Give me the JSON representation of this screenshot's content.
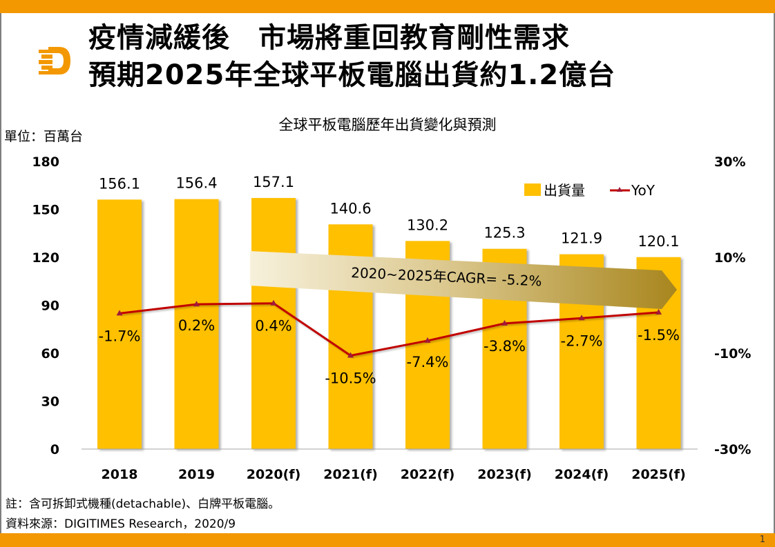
{
  "header": {
    "title_line1": "疫情減緩後　市場將重回教育剛性需求",
    "title_line2": "預期2025年全球平板電腦出貨約1.2億台",
    "logo": "digitimes-logo-icon"
  },
  "unit_label": "單位：百萬台",
  "footer": {
    "note": "註：含可拆卸式機種(detachable)、白牌平板電腦。",
    "source": "資料來源：DIGITIMES Research，2020/9",
    "page_number": "1"
  },
  "colors": {
    "brand": "#f39800",
    "bar": "#ffc000",
    "line": "#c00000",
    "marker": "#a01a3a",
    "cagr_arrow_start": "#f2ead0",
    "cagr_arrow_end": "#a8861e"
  },
  "chart_data": {
    "type": "bar",
    "title": "全球平板電腦歷年出貨變化與預測",
    "xlabel": "",
    "ylabel": "單位：百萬台",
    "categories": [
      "2018",
      "2019",
      "2020(f)",
      "2021(f)",
      "2022(f)",
      "2023(f)",
      "2024(f)",
      "2025(f)"
    ],
    "series": [
      {
        "name": "出貨量",
        "type": "bar",
        "axis": "left",
        "values": [
          156.1,
          156.4,
          157.1,
          140.6,
          130.2,
          125.3,
          121.9,
          120.1
        ],
        "labels": [
          "156.1",
          "156.4",
          "157.1",
          "140.6",
          "130.2",
          "125.3",
          "121.9",
          "120.1"
        ]
      },
      {
        "name": "YoY",
        "type": "line",
        "axis": "right",
        "values": [
          -1.7,
          0.2,
          0.4,
          -10.5,
          -7.4,
          -3.8,
          -2.7,
          -1.5
        ],
        "labels": [
          "-1.7%",
          "0.2%",
          "0.4%",
          "-10.5%",
          "-7.4%",
          "-3.8%",
          "-2.7%",
          "-1.5%"
        ]
      }
    ],
    "ylim": [
      0,
      180
    ],
    "yticks": [
      0,
      30,
      60,
      90,
      120,
      150,
      180
    ],
    "ytick_labels": [
      "0",
      "30",
      "60",
      "90",
      "120",
      "150",
      "180"
    ],
    "y2lim": [
      -30,
      30
    ],
    "y2ticks": [
      -30,
      -10,
      10,
      30
    ],
    "y2tick_labels": [
      "-30%",
      "-10%",
      "10%",
      "30%"
    ],
    "legend": {
      "position": "top-right",
      "entries": [
        "出貨量",
        "YoY"
      ]
    },
    "annotation": {
      "text": "2020~2025年CAGR=  -5.2%",
      "value": -5.2
    },
    "grid": false
  }
}
